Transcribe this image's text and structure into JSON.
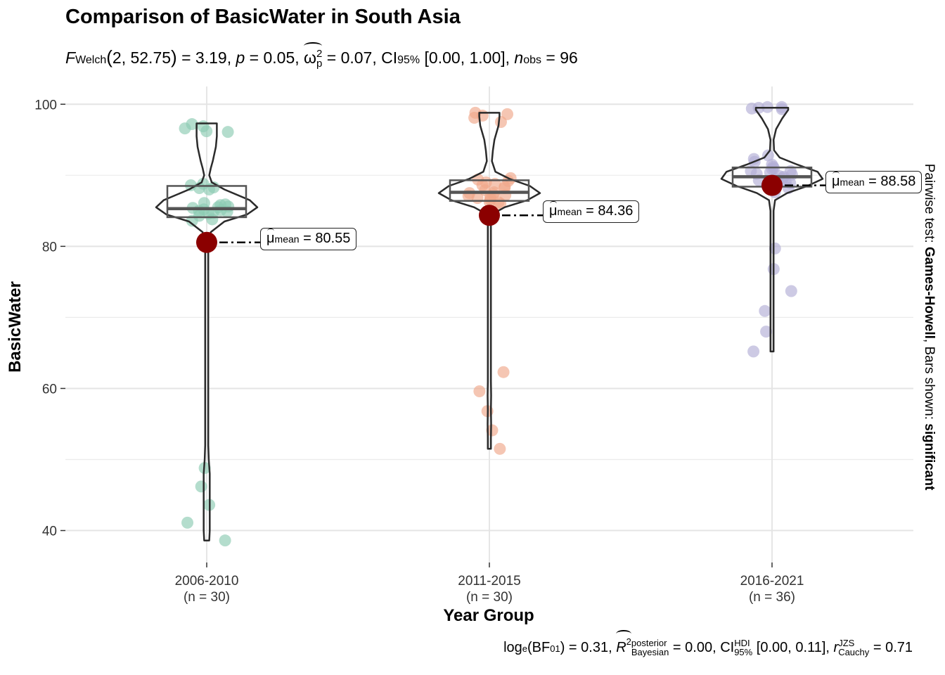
{
  "title": "Comparison of BasicWater in South Asia",
  "subtitle": {
    "stat_symbol": "F",
    "stat_sub": "Welch",
    "df": "2, 52.75",
    "stat_value": "= 3.19,",
    "p_symbol": "p",
    "p_value": "= 0.05,",
    "effect_symbol": "ω",
    "effect_sup": "2",
    "effect_sub": "p",
    "effect_value": "= 0.07,",
    "ci_symbol": "CI",
    "ci_sub": "95%",
    "ci_value": "[0.00, 1.00],",
    "n_symbol": "n",
    "n_sub": "obs",
    "n_value": "= 96"
  },
  "caption": {
    "bf_prefix": "log",
    "bf_prefix_sub": "e",
    "bf_open": "(BF",
    "bf_sub": "01",
    "bf_value": ") = 0.31,",
    "r2_symbol": "R",
    "r2_sup": "2",
    "r2_supsub_top": "posterior",
    "r2_supsub_bottom": "Bayesian",
    "r2_value": "= 0.00,",
    "ci_symbol": "CI",
    "ci_sup": "HDI",
    "ci_sub": "95%",
    "ci_value": "[0.00, 0.11],",
    "r_symbol": "r",
    "r_sup": "JZS",
    "r_sub": "Cauchy",
    "r_value": "= 0.71"
  },
  "side_label": {
    "prefix": "Pairwise test: ",
    "test": "Games-Howell",
    "middle": ", Bars shown: ",
    "shown": "significant"
  },
  "chart_data": {
    "type": "violin-box-scatter",
    "title": "Comparison of BasicWater in South Asia",
    "xlabel": "Year Group",
    "ylabel": "BasicWater",
    "ylim": [
      35.5,
      102.5
    ],
    "yticks": [
      40,
      60,
      80,
      100
    ],
    "grid": true,
    "mean_color": "#8B0000",
    "groups": [
      {
        "name": "2006-2010",
        "n_label": "(n = 30)",
        "color": "#8CCBB2",
        "mean": 80.55,
        "mean_label": "= 80.55",
        "box": {
          "q1": 84.1,
          "median": 85.3,
          "q3": 88.5,
          "whisker_low": 84.1,
          "whisker_high": 88.5
        },
        "violin_range": [
          38.6,
          97.3
        ],
        "violin_profile": [
          [
            38.6,
            0.05
          ],
          [
            40,
            0.06
          ],
          [
            44,
            0.06
          ],
          [
            48,
            0.06
          ],
          [
            50,
            0.04
          ],
          [
            52,
            0.01
          ],
          [
            55,
            0.01
          ],
          [
            60,
            0.01
          ],
          [
            65,
            0.01
          ],
          [
            70,
            0.01
          ],
          [
            75,
            0.01
          ],
          [
            78,
            0.01
          ],
          [
            80,
            0.01
          ],
          [
            82,
            0.08
          ],
          [
            83.5,
            0.35
          ],
          [
            84.5,
            0.8
          ],
          [
            85.5,
            1.0
          ],
          [
            86.5,
            0.85
          ],
          [
            88,
            0.35
          ],
          [
            89,
            0.1
          ],
          [
            90,
            0.05
          ],
          [
            91,
            0.08
          ],
          [
            92,
            0.12
          ],
          [
            94,
            0.18
          ],
          [
            95.5,
            0.2
          ],
          [
            96.5,
            0.2
          ],
          [
            97.3,
            0.2
          ]
        ],
        "points": [
          38.6,
          41.1,
          43.6,
          46.2,
          48.8,
          83.8,
          83.6,
          84.3,
          84.6,
          84.9,
          85.1,
          85.4,
          85.6,
          85.8,
          86.1,
          85.9,
          85.2,
          84.7,
          85.0,
          85.5,
          88.0,
          88.3,
          88.8,
          88.6,
          88.2,
          96.2,
          96.6,
          97.2,
          96.9,
          96.1
        ]
      },
      {
        "name": "2011-2015",
        "n_label": "(n = 30)",
        "color": "#EFA78A",
        "mean": 84.36,
        "mean_label": "= 84.36",
        "box": {
          "q1": 86.4,
          "median": 87.6,
          "q3": 89.3,
          "whisker_low": 86.4,
          "whisker_high": 89.3
        },
        "violin_range": [
          51.5,
          98.8
        ],
        "violin_profile": [
          [
            51.5,
            0.03
          ],
          [
            53,
            0.02
          ],
          [
            55,
            0.035
          ],
          [
            57,
            0.02
          ],
          [
            59,
            0.035
          ],
          [
            61,
            0.02
          ],
          [
            63,
            0.03
          ],
          [
            64.5,
            0.03
          ],
          [
            66,
            0.01
          ],
          [
            70,
            0.01
          ],
          [
            75,
            0.01
          ],
          [
            80,
            0.01
          ],
          [
            83,
            0.01
          ],
          [
            84.5,
            0.05
          ],
          [
            85.5,
            0.3
          ],
          [
            86.5,
            0.75
          ],
          [
            87.5,
            1.0
          ],
          [
            88.5,
            0.8
          ],
          [
            89.5,
            0.4
          ],
          [
            90.5,
            0.12
          ],
          [
            92,
            0.05
          ],
          [
            93.5,
            0.07
          ],
          [
            95,
            0.1
          ],
          [
            97,
            0.18
          ],
          [
            98.3,
            0.2
          ],
          [
            98.8,
            0.2
          ]
        ],
        "points": [
          51.5,
          54.1,
          56.8,
          59.6,
          62.3,
          86.0,
          86.3,
          86.6,
          86.9,
          87.1,
          87.3,
          87.6,
          87.9,
          88.2,
          88.6,
          89.0,
          89.4,
          89.6,
          86.2,
          87.2,
          88.4,
          87.5,
          88.8,
          89.2,
          86.8,
          97.5,
          98.1,
          98.6,
          98.8,
          98.4
        ]
      },
      {
        "name": "2016-2021",
        "n_label": "(n = 36)",
        "color": "#B2AED6",
        "mean": 88.58,
        "mean_label": "= 88.58",
        "box": {
          "q1": 88.4,
          "median": 89.8,
          "q3": 91.1,
          "whisker_low": 88.4,
          "whisker_high": 91.1
        },
        "violin_range": [
          65.2,
          99.5
        ],
        "violin_profile": [
          [
            65.2,
            0.02
          ],
          [
            67,
            0.015
          ],
          [
            69,
            0.03
          ],
          [
            71,
            0.015
          ],
          [
            73,
            0.03
          ],
          [
            75,
            0.015
          ],
          [
            77,
            0.03
          ],
          [
            79,
            0.015
          ],
          [
            81,
            0.025
          ],
          [
            83,
            0.01
          ],
          [
            85,
            0.01
          ],
          [
            86.5,
            0.06
          ],
          [
            87.5,
            0.3
          ],
          [
            88.5,
            0.7
          ],
          [
            89.5,
            1.0
          ],
          [
            90.5,
            0.9
          ],
          [
            91.5,
            0.5
          ],
          [
            92.5,
            0.15
          ],
          [
            93.5,
            0.04
          ],
          [
            95,
            0.02
          ],
          [
            96.5,
            0.08
          ],
          [
            98,
            0.2
          ],
          [
            99.2,
            0.32
          ],
          [
            99.5,
            0.32
          ]
        ],
        "points": [
          65.2,
          68.0,
          70.9,
          73.7,
          76.8,
          79.7,
          87.6,
          88.0,
          88.3,
          88.6,
          88.9,
          89.1,
          89.3,
          89.6,
          89.9,
          90.1,
          90.4,
          90.6,
          90.9,
          91.2,
          91.5,
          91.9,
          92.3,
          92.8,
          88.2,
          89.5,
          90.2,
          91.0,
          89.8,
          90.6,
          88.8,
          99.4,
          99.6,
          99.5,
          99.3,
          99.6
        ]
      }
    ]
  }
}
